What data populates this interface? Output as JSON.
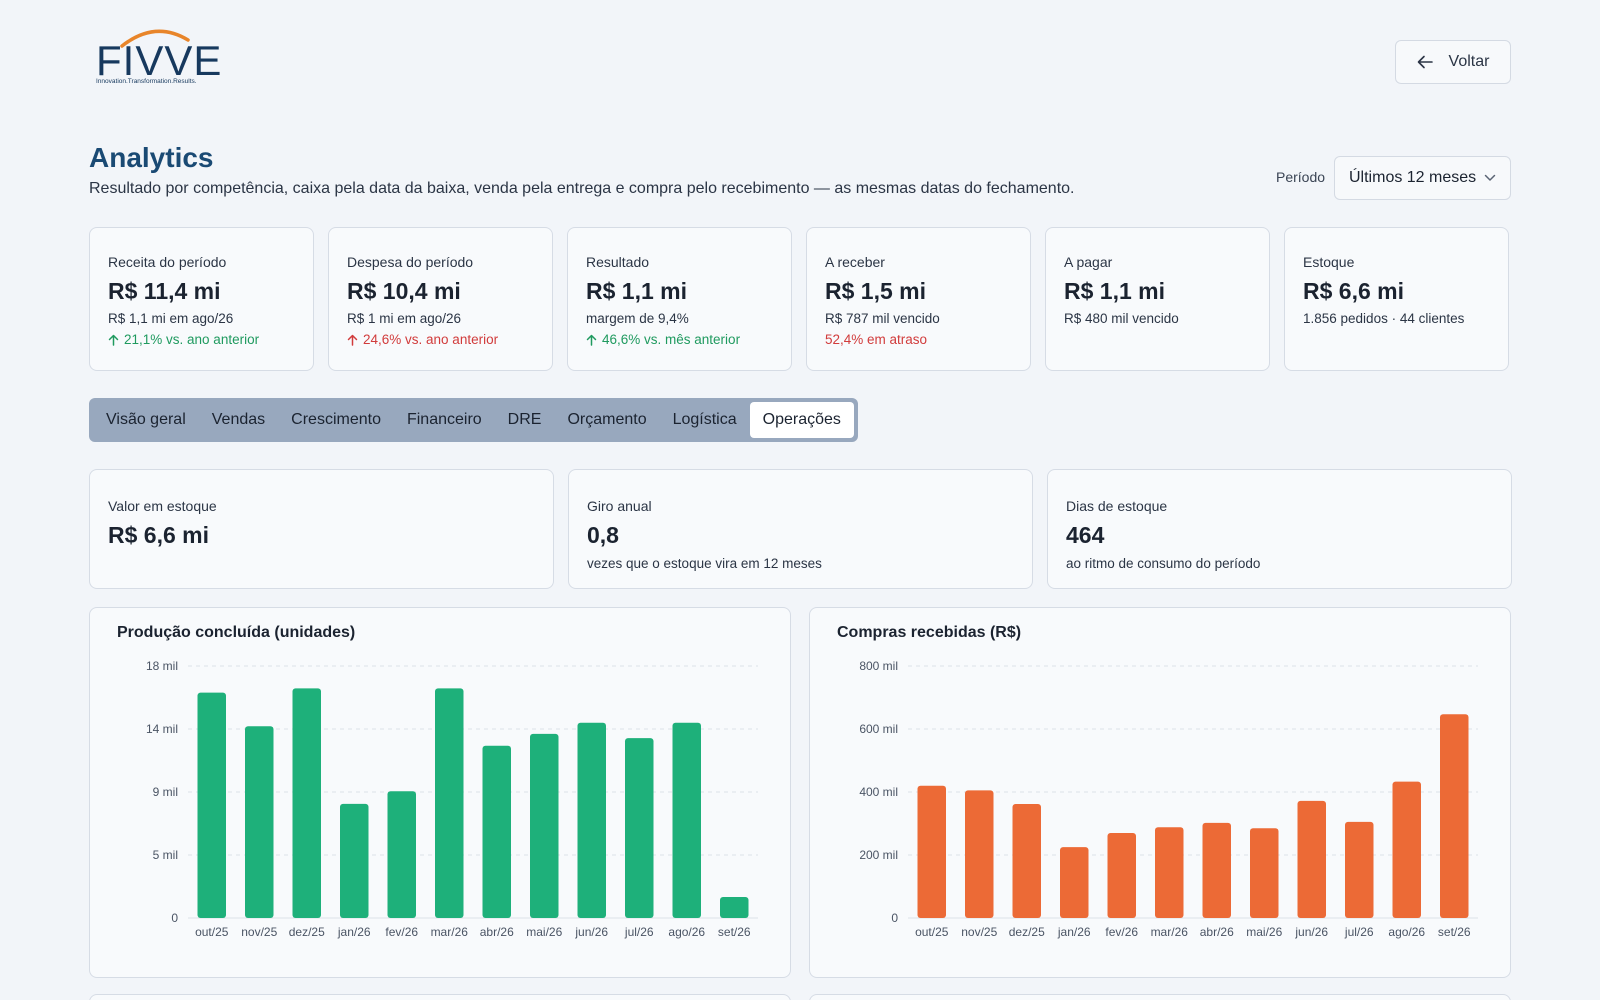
{
  "brand": {
    "name": "FIVVE",
    "tagline": "Innovation.Transformation.Results.",
    "primary_color": "#17395e",
    "arc_color": "#e8852a"
  },
  "header": {
    "back_label": "Voltar",
    "title": "Analytics",
    "subtitle": "Resultado por competência, caixa pela data da baixa, venda pela entrega e compra pelo recebimento — as mesmas datas do fechamento.",
    "period_label": "Período",
    "period_value": "Últimos 12 meses"
  },
  "kpis": [
    {
      "label": "Receita do período",
      "value": "R$ 11,4 mi",
      "note": "R$ 1,1 mi em ago/26",
      "trend": "21,1% vs. ano anterior",
      "trend_kind": "up",
      "arrow": true
    },
    {
      "label": "Despesa do período",
      "value": "R$ 10,4 mi",
      "note": "R$ 1 mi em ago/26",
      "trend": "24,6% vs. ano anterior",
      "trend_kind": "bad",
      "arrow": true
    },
    {
      "label": "Resultado",
      "value": "R$ 1,1 mi",
      "note": "margem de 9,4%",
      "trend": "46,6% vs. mês anterior",
      "trend_kind": "up",
      "arrow": true
    },
    {
      "label": "A receber",
      "value": "R$ 1,5 mi",
      "note": "R$ 787 mil vencido",
      "trend": "52,4% em atraso",
      "trend_kind": "bad",
      "arrow": false
    },
    {
      "label": "A pagar",
      "value": "R$ 1,1 mi",
      "note": "R$ 480 mil vencido",
      "trend": "",
      "trend_kind": "",
      "arrow": false
    },
    {
      "label": "Estoque",
      "value": "R$ 6,6 mi",
      "note": "1.856 pedidos · 44 clientes",
      "trend": "",
      "trend_kind": "",
      "arrow": false
    }
  ],
  "tabs": [
    {
      "label": "Visão geral",
      "active": false
    },
    {
      "label": "Vendas",
      "active": false
    },
    {
      "label": "Crescimento",
      "active": false
    },
    {
      "label": "Financeiro",
      "active": false
    },
    {
      "label": "DRE",
      "active": false
    },
    {
      "label": "Orçamento",
      "active": false
    },
    {
      "label": "Logística",
      "active": false
    },
    {
      "label": "Operações",
      "active": true
    }
  ],
  "stock_cards": [
    {
      "label": "Valor em estoque",
      "value": "R$ 6,6 mi",
      "note": ""
    },
    {
      "label": "Giro anual",
      "value": "0,8",
      "note": "vezes que o estoque vira em 12 meses"
    },
    {
      "label": "Dias de estoque",
      "value": "464",
      "note": "ao ritmo de consumo do período"
    }
  ],
  "colors": {
    "trend_up": "#1f9a5f",
    "trend_bad": "#d13b3b",
    "production_bar": "#1eb07a",
    "purchases_bar": "#ec6a36",
    "title": "#1a4a74"
  },
  "chart_data": [
    {
      "type": "bar",
      "title": "Produção concluída (unidades)",
      "categories": [
        "out/25",
        "nov/25",
        "dez/25",
        "jan/26",
        "fev/26",
        "mar/26",
        "abr/26",
        "mai/26",
        "jun/26",
        "jul/26",
        "ago/26",
        "set/26"
      ],
      "values": [
        16100,
        13700,
        16400,
        8150,
        9050,
        16400,
        12300,
        13150,
        13950,
        12850,
        13950,
        1500
      ],
      "ylim": [
        0,
        18000
      ],
      "y_ticks": [
        0,
        4500,
        9000,
        13500,
        18000
      ],
      "y_tick_labels": [
        "0",
        "5 mil",
        "9 mil",
        "14 mil",
        "18 mil"
      ],
      "grid": true,
      "color": "#1eb07a"
    },
    {
      "type": "bar",
      "title": "Compras recebidas (R$)",
      "categories": [
        "out/25",
        "nov/25",
        "dez/25",
        "jan/26",
        "fev/26",
        "mar/26",
        "abr/26",
        "mai/26",
        "jun/26",
        "jul/26",
        "ago/26",
        "set/26"
      ],
      "values": [
        420000,
        405000,
        362000,
        225000,
        270000,
        288000,
        302000,
        285000,
        372000,
        305000,
        433000,
        647000
      ],
      "ylim": [
        0,
        800000
      ],
      "y_ticks": [
        0,
        200000,
        400000,
        600000,
        800000
      ],
      "y_tick_labels": [
        "0",
        "200 mil",
        "400 mil",
        "600 mil",
        "800 mil"
      ],
      "grid": true,
      "color": "#ec6a36"
    }
  ]
}
